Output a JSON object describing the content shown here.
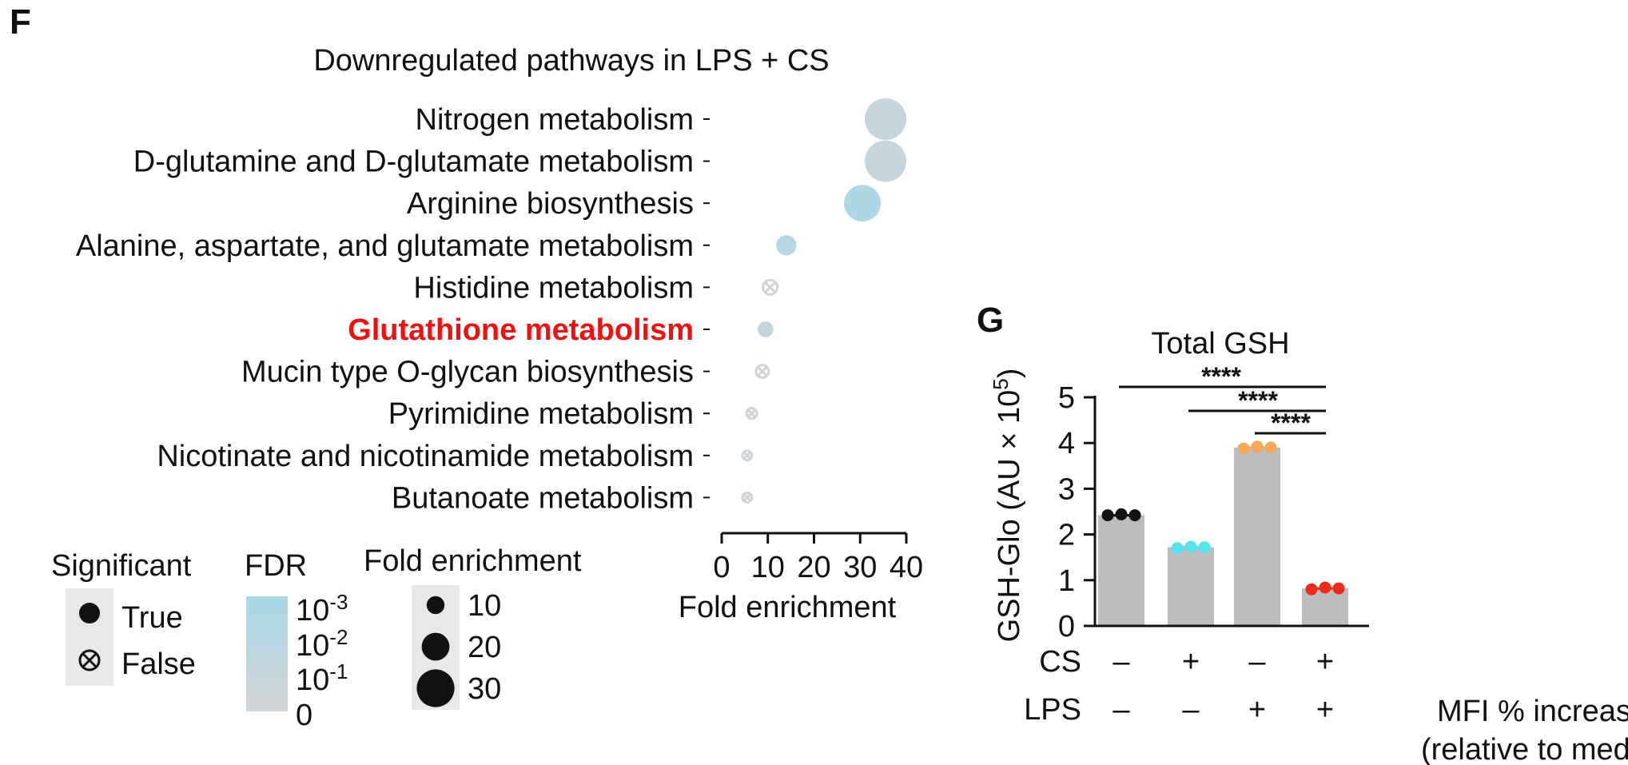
{
  "panel_f": {
    "letter": "F",
    "legend": {
      "significant_title": "Significant",
      "true_label": "True",
      "false_label": "False",
      "fdr_title": "FDR",
      "fdr_ticks": [
        {
          "base": "10",
          "exp": "-3"
        },
        {
          "base": "10",
          "exp": "-2"
        },
        {
          "base": "10",
          "exp": "-1"
        },
        {
          "base": "0",
          "exp": ""
        }
      ],
      "fdr_colors": [
        "#a9d7e7",
        "#d2d4d6"
      ],
      "size_title": "Fold enrichment",
      "size_values": [
        "10",
        "20",
        "30"
      ]
    }
  },
  "panel_g": {
    "letter": "G",
    "row_labels": {
      "cs": "CS",
      "lps": "LPS"
    },
    "cs_signs": [
      "–",
      "+",
      "–",
      "+"
    ],
    "lps_signs": [
      "–",
      "–",
      "+",
      "+"
    ],
    "dot_colors": [
      "#111111",
      "#55e3ee",
      "#f5a85a",
      "#ee2a1a"
    ],
    "bar_color": "#bdbdbd",
    "footer_line1": "MFI % increase",
    "footer_line2": "(relative to media)"
  },
  "chart_data": [
    {
      "type": "scatter",
      "title": "Downregulated pathways in LPS + CS",
      "xlabel": "Fold enrichment",
      "xlim": [
        0,
        40
      ],
      "xticks": [
        0,
        10,
        20,
        30,
        40
      ],
      "categories": [
        "Nitrogen metabolism",
        "D-glutamine and D-glutamate metabolism",
        "Arginine biosynthesis",
        "Alanine, aspartate, and glutamate metabolism",
        "Histidine metabolism",
        "Glutathione metabolism",
        "Mucin type O-glycan biosynthesis",
        "Pyrimidine metabolism",
        "Nicotinate and nicotinamide metabolism",
        "Butanoate metabolism"
      ],
      "highlighted": "Glutathione metabolism",
      "fold_enrichment": [
        35.5,
        35.5,
        30.5,
        14,
        10.5,
        9.5,
        8.8,
        6.5,
        5.5,
        5.5
      ],
      "significant": [
        true,
        true,
        true,
        true,
        false,
        true,
        false,
        false,
        false,
        false
      ],
      "fdr_level": [
        0.35,
        0.35,
        0.9,
        0.7,
        0.05,
        0.35,
        0.05,
        0.05,
        0.05,
        0.05
      ]
    },
    {
      "type": "bar",
      "title": "Total GSH",
      "ylabel_main": "GSH-Glo (AU × 10",
      "ylabel_exp": "5",
      "ylabel_end": ")",
      "ylim": [
        0,
        5
      ],
      "yticks": [
        0,
        1,
        2,
        3,
        4,
        5
      ],
      "categories": [
        "CS– LPS–",
        "CS+ LPS–",
        "CS– LPS+",
        "CS+ LPS+"
      ],
      "values": [
        2.42,
        1.72,
        3.9,
        0.82
      ],
      "points": [
        [
          2.42,
          2.44,
          2.42
        ],
        [
          1.7,
          1.73,
          1.72
        ],
        [
          3.88,
          3.92,
          3.9
        ],
        [
          0.8,
          0.84,
          0.82
        ]
      ],
      "significance": [
        {
          "from": 0,
          "to": 3,
          "label": "****"
        },
        {
          "from": 1,
          "to": 3,
          "label": "****"
        },
        {
          "from": 2,
          "to": 3,
          "label": "****"
        }
      ]
    }
  ]
}
